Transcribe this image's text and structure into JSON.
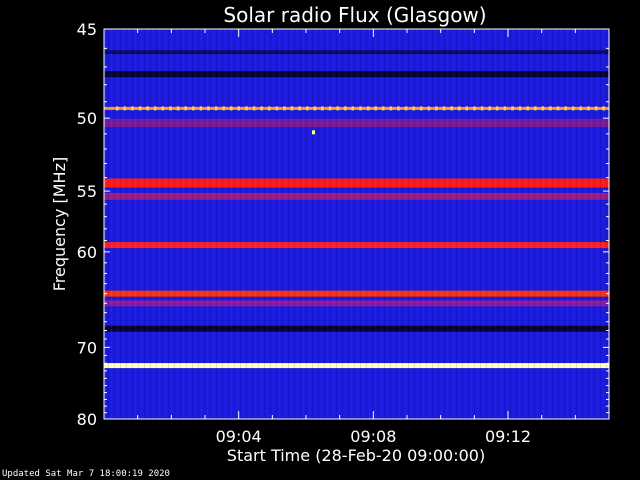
{
  "chart_data": {
    "type": "heatmap",
    "title": "Solar radio Flux (Glasgow)",
    "xlabel": "Start Time (28-Feb-20 09:00:00)",
    "ylabel": "Frequency [MHz]",
    "x_tick_labels": [
      "09:04",
      "09:08",
      "09:12"
    ],
    "x_tick_values_min": [
      4,
      8,
      12
    ],
    "x_range_min": [
      0,
      15
    ],
    "y_tick_labels": [
      "45",
      "50",
      "55",
      "60",
      "70",
      "80"
    ],
    "y_tick_values_mhz": [
      45,
      50,
      55,
      60,
      70,
      80
    ],
    "y_range_mhz": [
      45,
      80
    ],
    "y_scale": "reciprocal",
    "background_color": "#1a1ae0",
    "bands": [
      {
        "freq_mhz": 46.2,
        "color": "#0a0a70"
      },
      {
        "freq_mhz": 47.4,
        "color": "#05053a"
      },
      {
        "freq_mhz": 49.4,
        "color": "#ff9a30"
      },
      {
        "freq_mhz": 50.3,
        "color": "#7a1a9a"
      },
      {
        "freq_mhz": 54.4,
        "color": "#ff1a1a"
      },
      {
        "freq_mhz": 55.4,
        "color": "#9a1a8a"
      },
      {
        "freq_mhz": 59.4,
        "color": "#ff2020"
      },
      {
        "freq_mhz": 64.0,
        "color": "#ff3010"
      },
      {
        "freq_mhz": 65.0,
        "color": "#8a1aa0"
      },
      {
        "freq_mhz": 67.8,
        "color": "#050530"
      },
      {
        "freq_mhz": 72.3,
        "color": "#ffffc0"
      }
    ]
  },
  "footer": {
    "updated": "Updated Sat Mar  7 18:00:19 2020"
  }
}
